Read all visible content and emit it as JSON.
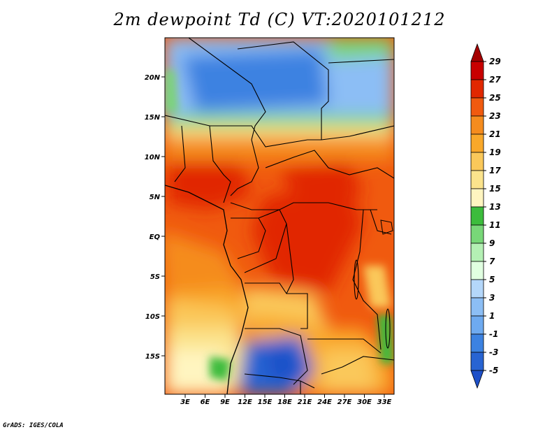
{
  "title": "2m dewpoint Td (C) VT:2020101212",
  "credit": "GrADS: IGES/COLA",
  "map": {
    "lat_labels": [
      "20N",
      "15N",
      "10N",
      "5N",
      "EQ",
      "5S",
      "10S",
      "15S"
    ],
    "lon_labels": [
      "3E",
      "6E",
      "9E",
      "12E",
      "15E",
      "18E",
      "21E",
      "24E",
      "27E",
      "30E",
      "33E"
    ]
  },
  "colorbar": {
    "labels": [
      "29",
      "27",
      "25",
      "23",
      "21",
      "19",
      "17",
      "15",
      "13",
      "11",
      "9",
      "7",
      "5",
      "3",
      "1",
      "-1",
      "-3",
      "-5"
    ],
    "colors": [
      "#a50000",
      "#c80000",
      "#e12800",
      "#f05a0f",
      "#f58c1e",
      "#f9a82a",
      "#fac85a",
      "#fbe38c",
      "#fff5c0",
      "#3cbc3c",
      "#78d778",
      "#b4f0b4",
      "#e1ffe1",
      "#b4d7fa",
      "#8cbef5",
      "#6eaaf0",
      "#3c82e1",
      "#2864d2",
      "#1e50c8"
    ]
  }
}
